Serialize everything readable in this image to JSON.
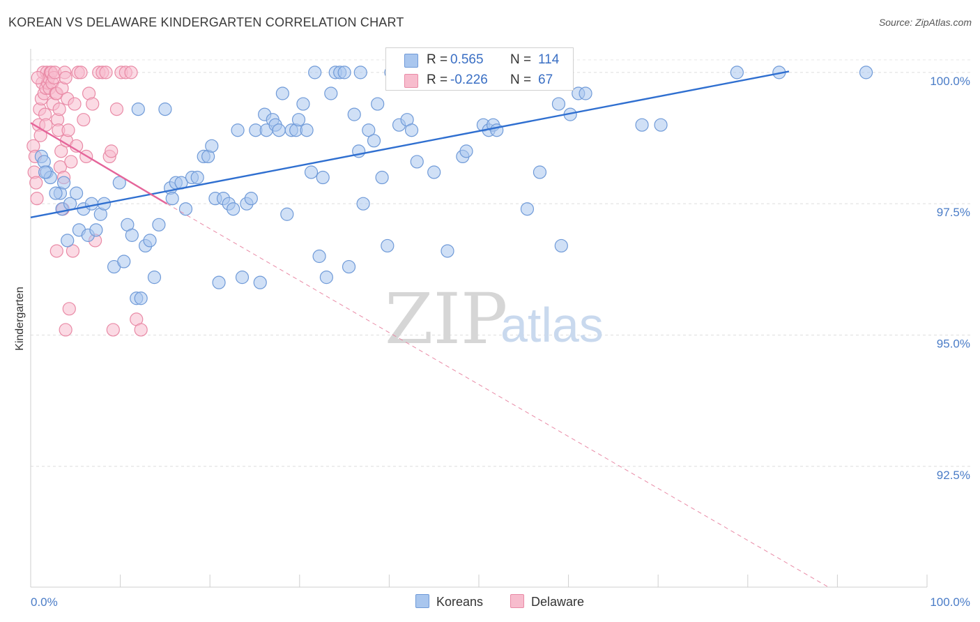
{
  "header": {
    "title": "KOREAN VS DELAWARE KINDERGARTEN CORRELATION CHART",
    "source": "Source: ZipAtlas.com"
  },
  "watermark": {
    "zip": "ZIP",
    "atlas": "atlas"
  },
  "legend": {
    "rows": [
      {
        "name": "Koreans",
        "r_label": "R =",
        "r_value": "0.565",
        "n_label": "N =",
        "n_value": "114",
        "color": "#a9c6ee",
        "stroke": "#6f9ad8"
      },
      {
        "name": "Delaware",
        "r_label": "R =",
        "r_value": "-0.226",
        "n_label": "N =",
        "n_value": "67",
        "color": "#f7bccd",
        "stroke": "#e98aa6"
      }
    ]
  },
  "chart_data": {
    "type": "scatter",
    "title": "KOREAN VS DELAWARE KINDERGARTEN CORRELATION CHART",
    "xlabel": "",
    "ylabel": "Kindergarten",
    "xlim": [
      0,
      100
    ],
    "ylim": [
      90.2,
      100.45
    ],
    "x_tick_labels": [
      "0.0%",
      "100.0%"
    ],
    "y_ticks": [
      {
        "value": 92.5,
        "label": "92.5%"
      },
      {
        "value": 95.0,
        "label": "95.0%"
      },
      {
        "value": 97.5,
        "label": "97.5%"
      },
      {
        "value": 100.0,
        "label": "100.0%"
      }
    ],
    "grid": true,
    "series": [
      {
        "name": "Koreans",
        "color": "#a9c6ee",
        "stroke": "#6f9ad8",
        "trend": {
          "x0": 0,
          "y0": 97.24,
          "x1": 84.6,
          "y1": 100.02
        },
        "points": [
          [
            1.2,
            98.4
          ],
          [
            1.5,
            98.3
          ],
          [
            1.8,
            98.1
          ],
          [
            2.2,
            98.0
          ],
          [
            3.3,
            97.7
          ],
          [
            3.5,
            97.4
          ],
          [
            3.7,
            97.9
          ],
          [
            4.1,
            96.8
          ],
          [
            4.4,
            97.5
          ],
          [
            5.1,
            97.7
          ],
          [
            5.4,
            97.0
          ],
          [
            5.9,
            97.4
          ],
          [
            6.4,
            96.9
          ],
          [
            6.8,
            97.5
          ],
          [
            7.3,
            97.0
          ],
          [
            7.8,
            97.3
          ],
          [
            8.2,
            97.5
          ],
          [
            9.3,
            96.3
          ],
          [
            9.9,
            97.9
          ],
          [
            10.4,
            96.4
          ],
          [
            10.8,
            97.1
          ],
          [
            11.3,
            96.9
          ],
          [
            11.8,
            95.7
          ],
          [
            12.3,
            95.7
          ],
          [
            12.8,
            96.7
          ],
          [
            13.3,
            96.8
          ],
          [
            13.8,
            96.1
          ],
          [
            14.3,
            97.1
          ],
          [
            15.0,
            99.3
          ],
          [
            15.6,
            97.8
          ],
          [
            16.2,
            97.9
          ],
          [
            16.8,
            97.9
          ],
          [
            17.3,
            97.4
          ],
          [
            18.0,
            98.0
          ],
          [
            18.6,
            98.0
          ],
          [
            19.3,
            98.4
          ],
          [
            19.8,
            98.4
          ],
          [
            20.2,
            98.6
          ],
          [
            20.6,
            97.6
          ],
          [
            21.0,
            96.0
          ],
          [
            21.5,
            97.6
          ],
          [
            22.1,
            97.5
          ],
          [
            22.6,
            97.4
          ],
          [
            23.1,
            98.9
          ],
          [
            23.6,
            96.1
          ],
          [
            24.1,
            97.5
          ],
          [
            24.6,
            97.6
          ],
          [
            25.1,
            98.9
          ],
          [
            25.6,
            96.0
          ],
          [
            26.1,
            99.2
          ],
          [
            26.3,
            98.9
          ],
          [
            27.0,
            99.1
          ],
          [
            27.3,
            99.0
          ],
          [
            27.7,
            98.9
          ],
          [
            28.1,
            99.6
          ],
          [
            28.6,
            97.3
          ],
          [
            29.1,
            98.9
          ],
          [
            29.6,
            98.9
          ],
          [
            29.9,
            99.1
          ],
          [
            30.4,
            99.4
          ],
          [
            30.8,
            98.9
          ],
          [
            31.3,
            98.1
          ],
          [
            31.7,
            100.0
          ],
          [
            32.2,
            96.5
          ],
          [
            32.6,
            98.0
          ],
          [
            33.0,
            96.1
          ],
          [
            33.5,
            99.6
          ],
          [
            34.0,
            100.0
          ],
          [
            34.5,
            100.0
          ],
          [
            35.0,
            100.0
          ],
          [
            35.5,
            96.3
          ],
          [
            36.1,
            99.2
          ],
          [
            36.6,
            98.5
          ],
          [
            37.1,
            97.5
          ],
          [
            37.7,
            98.9
          ],
          [
            38.3,
            98.7
          ],
          [
            38.7,
            99.4
          ],
          [
            39.2,
            98.0
          ],
          [
            39.8,
            96.7
          ],
          [
            40.2,
            100.0
          ],
          [
            41.1,
            99.0
          ],
          [
            42.0,
            99.1
          ],
          [
            42.5,
            98.9
          ],
          [
            43.1,
            98.3
          ],
          [
            45.0,
            98.1
          ],
          [
            46.5,
            96.6
          ],
          [
            48.2,
            98.4
          ],
          [
            48.6,
            98.5
          ],
          [
            50.5,
            99.0
          ],
          [
            51.1,
            98.9
          ],
          [
            51.6,
            99.0
          ],
          [
            52.0,
            98.9
          ],
          [
            55.4,
            97.4
          ],
          [
            56.8,
            98.1
          ],
          [
            57.2,
            100.0
          ],
          [
            58.1,
            100.0
          ],
          [
            58.9,
            99.4
          ],
          [
            59.2,
            96.7
          ],
          [
            59.7,
            100.0
          ],
          [
            60.2,
            99.2
          ],
          [
            61.1,
            99.6
          ],
          [
            61.9,
            99.6
          ],
          [
            68.2,
            99.0
          ],
          [
            70.3,
            99.0
          ],
          [
            78.8,
            100.0
          ],
          [
            83.5,
            100.0
          ],
          [
            93.2,
            100.0
          ],
          [
            42.8,
            100.0
          ],
          [
            50.1,
            100.0
          ],
          [
            36.8,
            100.0
          ],
          [
            15.8,
            97.6
          ],
          [
            12.0,
            99.3
          ],
          [
            1.6,
            98.1
          ],
          [
            2.8,
            97.7
          ]
        ]
      },
      {
        "name": "Delaware",
        "color": "#f7bccd",
        "stroke": "#e98aa6",
        "trend": {
          "x0": 0,
          "y0": 99.04,
          "x1": 15.2,
          "y1": 97.5
        },
        "trend_ext": {
          "x0": 15.2,
          "y0": 97.5,
          "x1": 89.0,
          "y1": 90.2
        },
        "points": [
          [
            0.3,
            98.6
          ],
          [
            0.4,
            98.1
          ],
          [
            0.5,
            98.4
          ],
          [
            0.6,
            97.9
          ],
          [
            0.7,
            97.6
          ],
          [
            0.9,
            99.0
          ],
          [
            1.0,
            99.3
          ],
          [
            1.1,
            98.8
          ],
          [
            1.2,
            99.5
          ],
          [
            1.3,
            99.8
          ],
          [
            1.4,
            100.0
          ],
          [
            1.5,
            99.6
          ],
          [
            1.6,
            99.2
          ],
          [
            1.7,
            99.7
          ],
          [
            1.8,
            100.0
          ],
          [
            1.9,
            99.8
          ],
          [
            2.0,
            99.9
          ],
          [
            2.1,
            99.7
          ],
          [
            2.2,
            100.0
          ],
          [
            2.3,
            100.0
          ],
          [
            2.4,
            99.8
          ],
          [
            2.5,
            99.4
          ],
          [
            2.6,
            99.9
          ],
          [
            2.7,
            100.0
          ],
          [
            2.8,
            99.6
          ],
          [
            2.9,
            99.6
          ],
          [
            3.0,
            99.1
          ],
          [
            3.1,
            98.9
          ],
          [
            3.2,
            99.3
          ],
          [
            3.3,
            98.2
          ],
          [
            3.4,
            98.5
          ],
          [
            3.5,
            99.7
          ],
          [
            3.6,
            97.4
          ],
          [
            3.7,
            98.0
          ],
          [
            3.8,
            100.0
          ],
          [
            3.9,
            99.9
          ],
          [
            4.0,
            98.7
          ],
          [
            4.1,
            99.5
          ],
          [
            4.2,
            98.9
          ],
          [
            4.3,
            95.5
          ],
          [
            4.5,
            98.3
          ],
          [
            4.7,
            96.6
          ],
          [
            4.9,
            99.4
          ],
          [
            5.1,
            98.6
          ],
          [
            5.3,
            100.0
          ],
          [
            5.6,
            100.0
          ],
          [
            5.9,
            99.1
          ],
          [
            6.2,
            98.4
          ],
          [
            6.5,
            99.6
          ],
          [
            6.9,
            99.4
          ],
          [
            7.2,
            96.8
          ],
          [
            7.6,
            100.0
          ],
          [
            8.0,
            100.0
          ],
          [
            8.4,
            100.0
          ],
          [
            8.8,
            98.4
          ],
          [
            9.2,
            95.1
          ],
          [
            9.6,
            99.3
          ],
          [
            10.1,
            100.0
          ],
          [
            10.6,
            100.0
          ],
          [
            11.2,
            100.0
          ],
          [
            11.8,
            95.3
          ],
          [
            12.3,
            95.1
          ],
          [
            9.0,
            98.5
          ],
          [
            3.9,
            95.1
          ],
          [
            2.9,
            96.6
          ],
          [
            1.7,
            99.0
          ],
          [
            0.8,
            99.9
          ]
        ]
      }
    ]
  }
}
